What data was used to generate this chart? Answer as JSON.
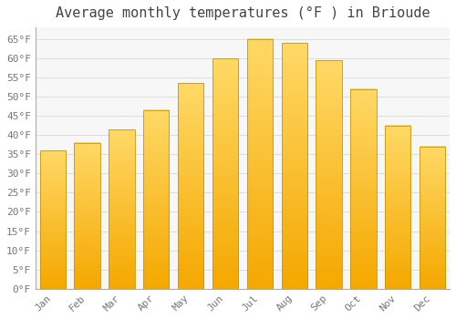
{
  "title": "Average monthly temperatures (°F ) in Brioude",
  "months": [
    "Jan",
    "Feb",
    "Mar",
    "Apr",
    "May",
    "Jun",
    "Jul",
    "Aug",
    "Sep",
    "Oct",
    "Nov",
    "Dec"
  ],
  "values": [
    36,
    38,
    41.5,
    46.5,
    53.5,
    60,
    65,
    64,
    59.5,
    52,
    42.5,
    37
  ],
  "bar_color_bottom": "#F5A800",
  "bar_color_top": "#FFD966",
  "bar_edge_color": "#C8960A",
  "background_color": "#FFFFFF",
  "plot_bg_color": "#F7F7F7",
  "grid_color": "#DDDDDD",
  "ylim": [
    0,
    68
  ],
  "yticks": [
    0,
    5,
    10,
    15,
    20,
    25,
    30,
    35,
    40,
    45,
    50,
    55,
    60,
    65
  ],
  "title_fontsize": 11,
  "tick_fontsize": 8,
  "title_color": "#444444",
  "tick_color": "#777777",
  "font_family": "monospace",
  "bar_width": 0.75
}
